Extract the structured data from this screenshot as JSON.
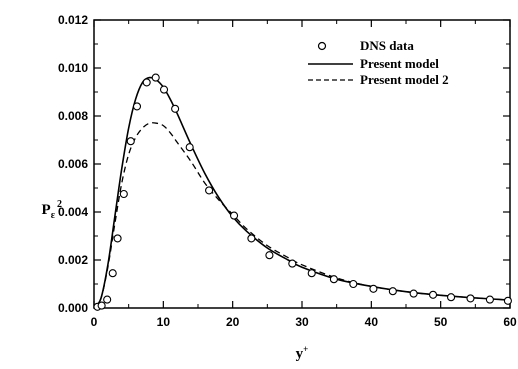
{
  "chart_data": {
    "type": "scatter",
    "title": "",
    "xlabel": "y",
    "xlabel_sup": "+",
    "ylabel": "P",
    "ylabel_sub": "ε",
    "ylabel_sup": "2",
    "xlim": [
      0,
      60
    ],
    "ylim": [
      0,
      0.012
    ],
    "xticks": [
      0,
      10,
      20,
      30,
      40,
      50,
      60
    ],
    "yticks": [
      0.0,
      0.002,
      0.004,
      0.006,
      0.008,
      0.01,
      0.012
    ],
    "xtick_labels": [
      "0",
      "10",
      "20",
      "30",
      "40",
      "50",
      "60"
    ],
    "ytick_labels": [
      "0.000",
      "0.002",
      "0.004",
      "0.006",
      "0.008",
      "0.010",
      "0.012"
    ],
    "grid": false,
    "legend_position": "top-right",
    "series": [
      {
        "name": "DNS data",
        "style": "open-circle",
        "x": [
          0.5,
          1.1,
          1.9,
          2.7,
          3.4,
          4.3,
          5.3,
          6.2,
          7.6,
          8.9,
          10.1,
          11.7,
          13.8,
          16.6,
          20.2,
          22.7,
          25.3,
          28.6,
          31.4,
          34.6,
          37.4,
          40.3,
          43.1,
          46.1,
          48.9,
          51.5,
          54.3,
          57.1,
          59.7
        ],
        "y": [
          5e-05,
          0.0001,
          0.00035,
          0.00145,
          0.0029,
          0.00475,
          0.00695,
          0.0084,
          0.0094,
          0.0096,
          0.0091,
          0.0083,
          0.0067,
          0.0049,
          0.00385,
          0.0029,
          0.0022,
          0.00185,
          0.00145,
          0.0012,
          0.001,
          0.0008,
          0.0007,
          0.0006,
          0.00055,
          0.00045,
          0.0004,
          0.00035,
          0.0003
        ]
      },
      {
        "name": "Present model",
        "style": "solid",
        "x": [
          0,
          1,
          2,
          3,
          4,
          5,
          6,
          7,
          8,
          9,
          10,
          11,
          12,
          14,
          16,
          18,
          20,
          22,
          25,
          28,
          30,
          35,
          40,
          45,
          50,
          55,
          60
        ],
        "y": [
          0,
          0.0004,
          0.0018,
          0.0038,
          0.0058,
          0.0075,
          0.0087,
          0.0094,
          0.0096,
          0.0095,
          0.0092,
          0.0087,
          0.0081,
          0.0068,
          0.0056,
          0.0046,
          0.0038,
          0.0032,
          0.0025,
          0.002,
          0.0017,
          0.0012,
          0.0009,
          0.00068,
          0.00053,
          0.00042,
          0.00033
        ]
      },
      {
        "name": "Present model 2",
        "style": "dashed",
        "x": [
          0,
          1,
          2,
          3,
          4,
          5,
          6,
          7,
          8,
          9,
          10,
          11,
          12,
          14,
          16,
          18,
          20,
          22,
          25,
          28,
          30,
          35,
          40,
          45,
          50,
          55,
          60
        ],
        "y": [
          0,
          0.0004,
          0.0017,
          0.0035,
          0.0052,
          0.0064,
          0.0071,
          0.0075,
          0.0077,
          0.0077,
          0.0076,
          0.0073,
          0.0069,
          0.0061,
          0.0052,
          0.0045,
          0.0039,
          0.0033,
          0.0026,
          0.0021,
          0.0018,
          0.00125,
          0.0009,
          0.00068,
          0.00053,
          0.00042,
          0.00033
        ]
      }
    ]
  }
}
